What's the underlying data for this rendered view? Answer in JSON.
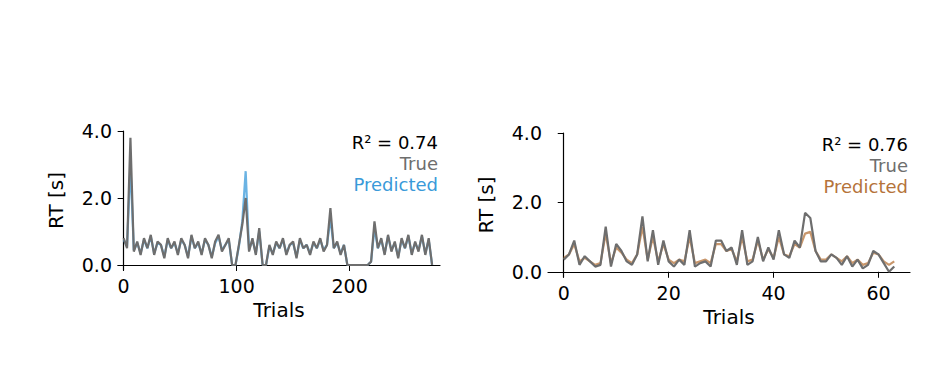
{
  "chart_data": [
    {
      "type": "line",
      "annotation": "R² = 0.74",
      "xlabel": "Trials",
      "ylabel": "RT [s]",
      "legend": "upper right",
      "grid": false,
      "xlim": [
        -5,
        280
      ],
      "xticks": [
        0,
        100,
        200
      ],
      "ylim": [
        -0.15,
        4.0
      ],
      "yticks": [
        {
          "value": 0,
          "label": "0.0"
        },
        {
          "value": 2,
          "label": "2.0"
        },
        {
          "value": 4,
          "label": "4.0"
        }
      ],
      "x": [
        0,
        3,
        6,
        9,
        12,
        15,
        18,
        21,
        24,
        27,
        30,
        33,
        36,
        39,
        42,
        45,
        48,
        51,
        54,
        57,
        60,
        63,
        66,
        69,
        72,
        75,
        78,
        81,
        84,
        87,
        90,
        93,
        96,
        99,
        102,
        105,
        108,
        111,
        114,
        117,
        120,
        123,
        126,
        129,
        132,
        135,
        138,
        141,
        144,
        147,
        150,
        153,
        156,
        159,
        162,
        165,
        168,
        171,
        174,
        177,
        180,
        183,
        186,
        189,
        192,
        195,
        198,
        201,
        204,
        207,
        210,
        213,
        216,
        219,
        222,
        225,
        228,
        231,
        234,
        237,
        240,
        243,
        246,
        249,
        252,
        255,
        258,
        261,
        264,
        267,
        270,
        273
      ],
      "series": [
        {
          "name": "True",
          "color": "#6e6e6e",
          "values": [
            0.8,
            0.5,
            3.8,
            0.4,
            0.7,
            0.3,
            0.8,
            0.5,
            0.9,
            0.3,
            0.7,
            0.6,
            0.2,
            0.8,
            0.5,
            0.7,
            0.3,
            0.8,
            0.6,
            0.2,
            0.9,
            0.5,
            0.7,
            0.3,
            0.8,
            0.6,
            0.2,
            0.7,
            0.9,
            0.4,
            0.6,
            0.8,
            0.0,
            0.0,
            0.6,
            1.2,
            2.0,
            0.4,
            0.8,
            0.3,
            1.1,
            0.0,
            0.0,
            0.6,
            0.3,
            0.7,
            0.5,
            0.8,
            0.3,
            0.6,
            0.7,
            0.2,
            0.8,
            0.5,
            0.6,
            0.3,
            0.7,
            0.5,
            0.8,
            0.4,
            0.6,
            1.7,
            0.5,
            0.7,
            0.3,
            0.6,
            0.0,
            0.0,
            0.0,
            0.0,
            0.0,
            0.0,
            0.0,
            0.1,
            1.3,
            0.5,
            0.8,
            0.3,
            0.9,
            0.4,
            0.7,
            0.2,
            0.8,
            0.5,
            0.9,
            0.3,
            0.7,
            0.4,
            0.9,
            0.3,
            0.8,
            0.0
          ]
        },
        {
          "name": "Predicted",
          "color": "#3a9ad9",
          "values": [
            0.75,
            0.55,
            3.0,
            0.45,
            0.65,
            0.35,
            0.75,
            0.5,
            0.85,
            0.35,
            0.65,
            0.6,
            0.25,
            0.75,
            0.5,
            0.65,
            0.35,
            0.75,
            0.6,
            0.25,
            0.85,
            0.5,
            0.65,
            0.35,
            0.75,
            0.6,
            0.25,
            0.65,
            0.85,
            0.45,
            0.6,
            0.75,
            0.0,
            0.0,
            0.55,
            1.3,
            2.8,
            0.45,
            0.75,
            0.35,
            1.0,
            0.0,
            0.0,
            0.55,
            0.35,
            0.65,
            0.5,
            0.75,
            0.35,
            0.6,
            0.65,
            0.25,
            0.75,
            0.5,
            0.6,
            0.35,
            0.65,
            0.5,
            0.75,
            0.45,
            0.6,
            1.4,
            0.5,
            0.65,
            0.35,
            0.6,
            0.0,
            0.0,
            0.0,
            0.0,
            0.0,
            0.0,
            0.0,
            0.1,
            1.1,
            0.5,
            0.75,
            0.35,
            0.85,
            0.45,
            0.65,
            0.25,
            0.75,
            0.5,
            0.85,
            0.35,
            0.65,
            0.45,
            0.85,
            0.35,
            0.75,
            0.0
          ]
        }
      ]
    },
    {
      "type": "line",
      "annotation": "R² = 0.76",
      "xlabel": "Trials",
      "ylabel": "RT [s]",
      "legend": "upper right",
      "grid": false,
      "xlim": [
        -3,
        66
      ],
      "xticks": [
        0,
        20,
        40,
        60
      ],
      "ylim": [
        -0.15,
        4.0
      ],
      "yticks": [
        {
          "value": 0,
          "label": "0.0"
        },
        {
          "value": 2,
          "label": "2.0"
        },
        {
          "value": 4,
          "label": "4.0"
        }
      ],
      "x": [
        0,
        1,
        2,
        3,
        4,
        5,
        6,
        7,
        8,
        9,
        10,
        11,
        12,
        13,
        14,
        15,
        16,
        17,
        18,
        19,
        20,
        21,
        22,
        23,
        24,
        25,
        26,
        27,
        28,
        29,
        30,
        31,
        32,
        33,
        34,
        35,
        36,
        37,
        38,
        39,
        40,
        41,
        42,
        43,
        44,
        45,
        46,
        47,
        48,
        49,
        50,
        51,
        52,
        53,
        54,
        55,
        56,
        57,
        58,
        59,
        60,
        61,
        62,
        63
      ],
      "series": [
        {
          "name": "True",
          "color": "#6e6e6e",
          "values": [
            0.35,
            0.5,
            0.9,
            0.2,
            0.45,
            0.3,
            0.15,
            0.2,
            1.3,
            0.15,
            0.8,
            0.6,
            0.3,
            0.2,
            0.5,
            1.6,
            0.3,
            1.2,
            0.2,
            0.9,
            0.3,
            0.15,
            0.35,
            0.2,
            1.2,
            0.15,
            0.25,
            0.3,
            0.15,
            0.9,
            0.9,
            0.6,
            0.7,
            0.2,
            1.2,
            0.2,
            0.3,
            1.0,
            0.3,
            0.7,
            0.35,
            1.2,
            0.5,
            0.4,
            0.9,
            0.7,
            1.7,
            1.55,
            0.6,
            0.3,
            0.3,
            0.5,
            0.4,
            0.2,
            0.45,
            0.15,
            0.35,
            0.1,
            0.2,
            0.6,
            0.5,
            0.25,
            0.0,
            0.15
          ]
        },
        {
          "name": "Predicted",
          "color": "#b5733a",
          "values": [
            0.4,
            0.5,
            0.8,
            0.3,
            0.4,
            0.3,
            0.2,
            0.25,
            1.1,
            0.25,
            0.7,
            0.55,
            0.35,
            0.25,
            0.5,
            1.3,
            0.35,
            1.0,
            0.3,
            0.8,
            0.35,
            0.25,
            0.35,
            0.3,
            1.0,
            0.25,
            0.3,
            0.35,
            0.25,
            0.8,
            0.8,
            0.6,
            0.65,
            0.3,
            1.0,
            0.3,
            0.35,
            0.9,
            0.35,
            0.65,
            0.4,
            1.0,
            0.5,
            0.45,
            0.8,
            0.7,
            1.1,
            1.15,
            0.6,
            0.35,
            0.35,
            0.5,
            0.4,
            0.3,
            0.45,
            0.25,
            0.35,
            0.2,
            0.25,
            0.55,
            0.5,
            0.3,
            0.2,
            0.3
          ]
        }
      ]
    }
  ]
}
